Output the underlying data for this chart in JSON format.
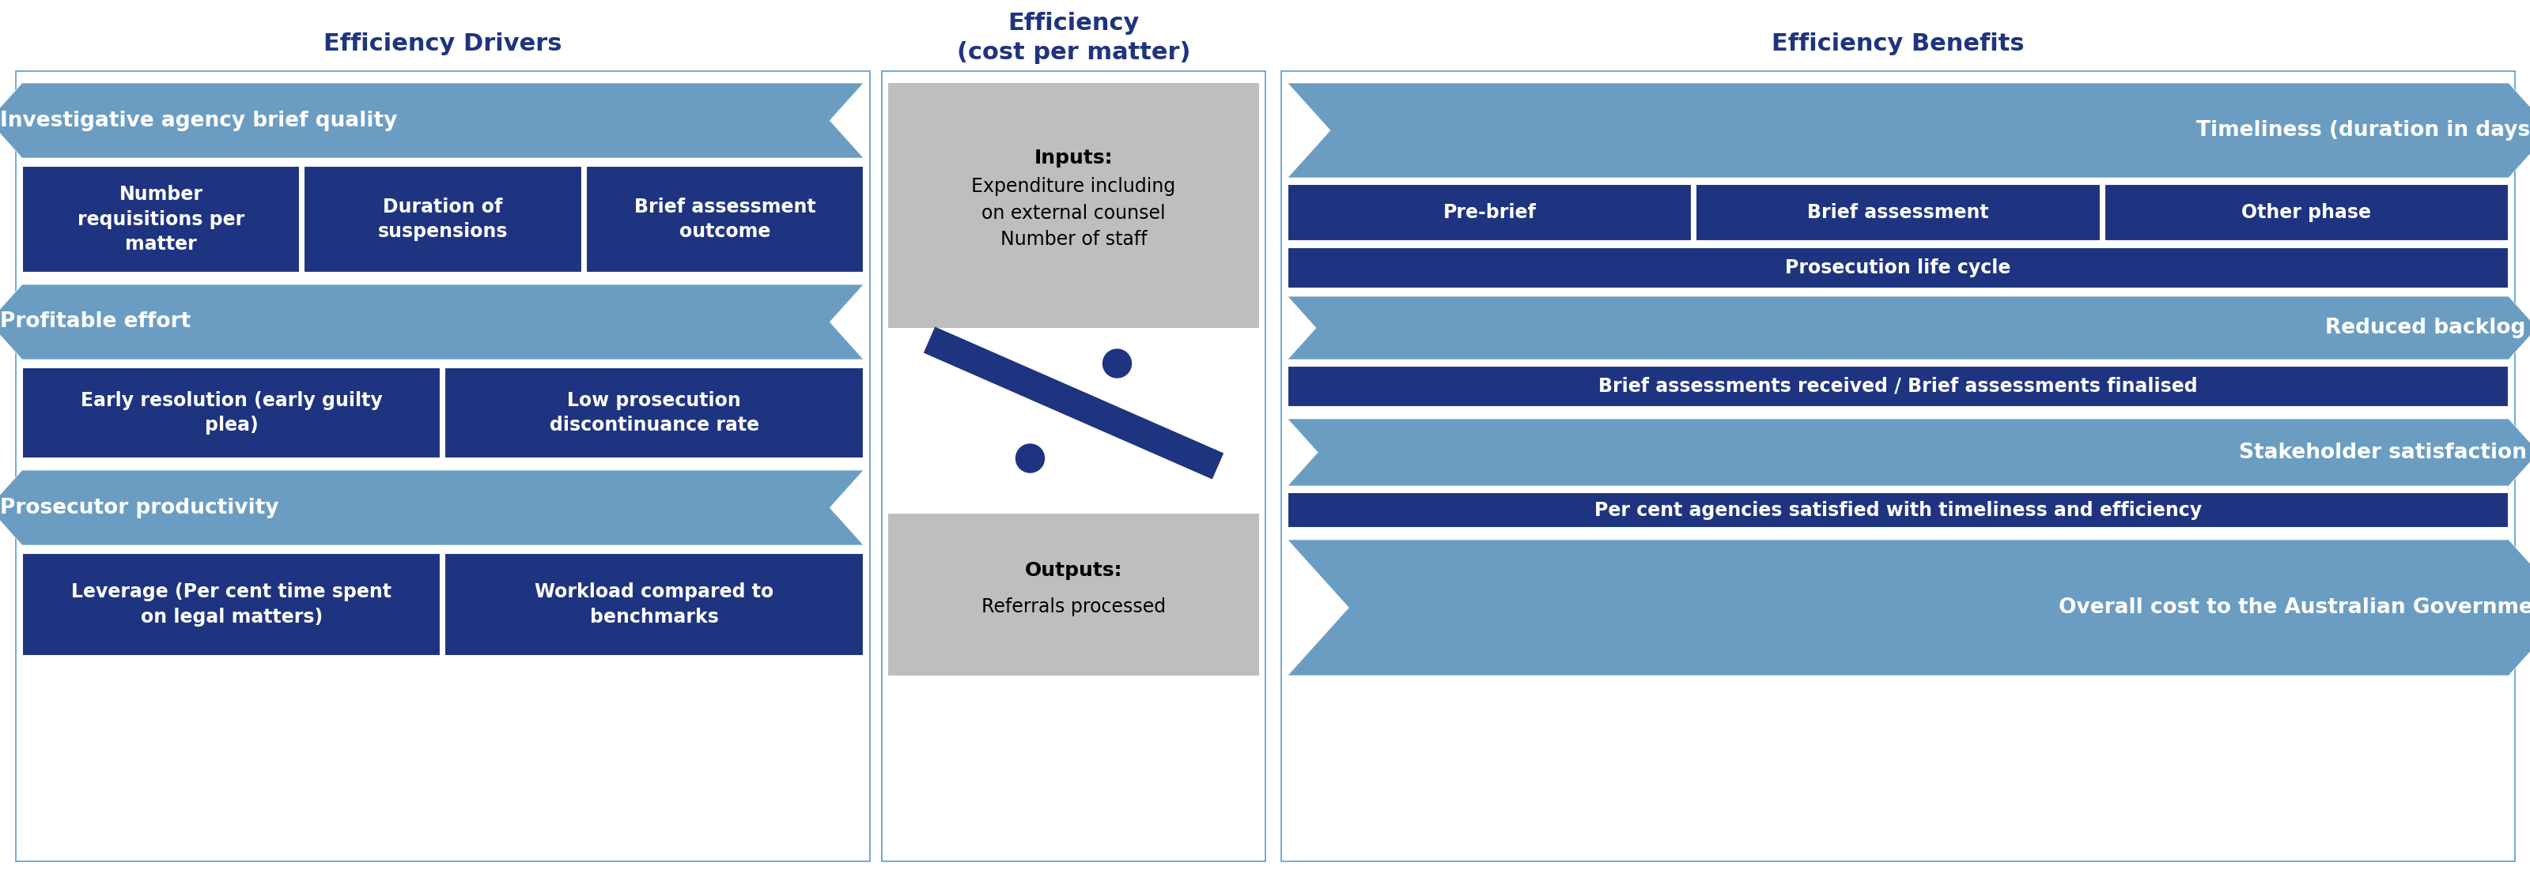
{
  "title_left": "Efficiency Drivers",
  "title_center": "Efficiency\n(cost per matter)",
  "title_right": "Efficiency Benefits",
  "title_color": "#1F3480",
  "bg_color": "#FFFFFF",
  "border_color": "#5B9BD5",
  "arrow_light_blue": "#6B9DC2",
  "arrow_dark_blue": "#1F3480",
  "box_dark_blue": "#1F3480",
  "box_light_bg": "#BEBEBE",
  "left_arrows": [
    "Investigative agency brief quality",
    "Profitable effort",
    "Prosecutor productivity"
  ],
  "left_boxes_row1": [
    "Number\nrequisitions per\nmatter",
    "Duration of\nsuspensions",
    "Brief assessment\noutcome"
  ],
  "left_boxes_row2": [
    "Early resolution (early guilty\nplea)",
    "Low prosecution\ndiscontinuance rate"
  ],
  "left_boxes_row3": [
    "Leverage (Per cent time spent\non legal matters)",
    "Workload compared to\nbenchmarks"
  ],
  "center_inputs_bold": "Inputs:",
  "center_inputs_normal": "Expenditure including\non external counsel\nNumber of staff",
  "center_outputs_bold": "Outputs:",
  "center_outputs_normal": "Referrals processed",
  "right_arrows": [
    "Timeliness (duration in days)",
    "Reduced backlog",
    "Stakeholder satisfaction",
    "Overall cost to the Australian Government"
  ],
  "right_boxes_row1": [
    "Pre-brief",
    "Brief assessment",
    "Other phase"
  ],
  "right_boxes_row1_under": "Prosecution life cycle",
  "right_boxes_row2": "Brief assessments received / Brief assessments finalised",
  "right_boxes_row3": "Per cent agencies satisfied with timeliness and efficiency"
}
